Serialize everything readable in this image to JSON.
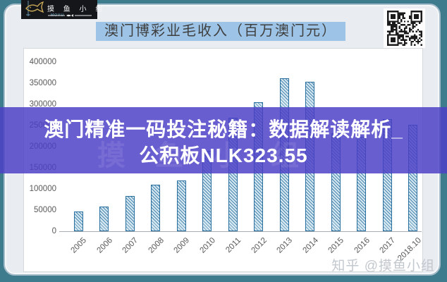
{
  "page": {
    "background": "#3e7b8d",
    "card_fill": "#e9edf1",
    "card_border": "#a4bbc9"
  },
  "logo": {
    "title": "摸 鱼 小 组",
    "subtitle": "MOYU",
    "icon": "fish-icon",
    "icon_color": "#c9a958"
  },
  "header": {
    "title": "澳门博彩业毛收入（百万澳门元）",
    "highlight_color": "#9dc3e6"
  },
  "qr": {
    "name": "qr-code"
  },
  "banner": {
    "line1": "澳门精准一码投注秘籍：数据解读解析_",
    "line2": "公积板NLK323.55",
    "color": "rgba(76,63,198,0.84)",
    "faint_watermark": "摸鱼小组"
  },
  "footer": {
    "watermark": "知乎 @摸鱼小组"
  },
  "chart_data": {
    "type": "bar",
    "title": "澳门博彩业毛收入（百万澳门元）",
    "xlabel": "",
    "ylabel": "",
    "categories": [
      "2005",
      "2006",
      "2007",
      "2008",
      "2009",
      "2010",
      "2011",
      "2012",
      "2013",
      "2014",
      "2015",
      "2016",
      "2017",
      "2018.10"
    ],
    "values": [
      47134,
      57521,
      83847,
      109826,
      120383,
      189588,
      267867,
      305235,
      361866,
      352714,
      230840,
      223210,
      265743,
      251465
    ],
    "ylim": [
      0,
      400000
    ],
    "ytick_step": 50000,
    "yticks": [
      "0",
      "50000",
      "100000",
      "150000",
      "200000",
      "250000",
      "300000",
      "350000",
      "400000"
    ],
    "grid": false,
    "legend": false,
    "bar_fill": "#d5e8f2",
    "bar_line": "#2a6f9e"
  }
}
